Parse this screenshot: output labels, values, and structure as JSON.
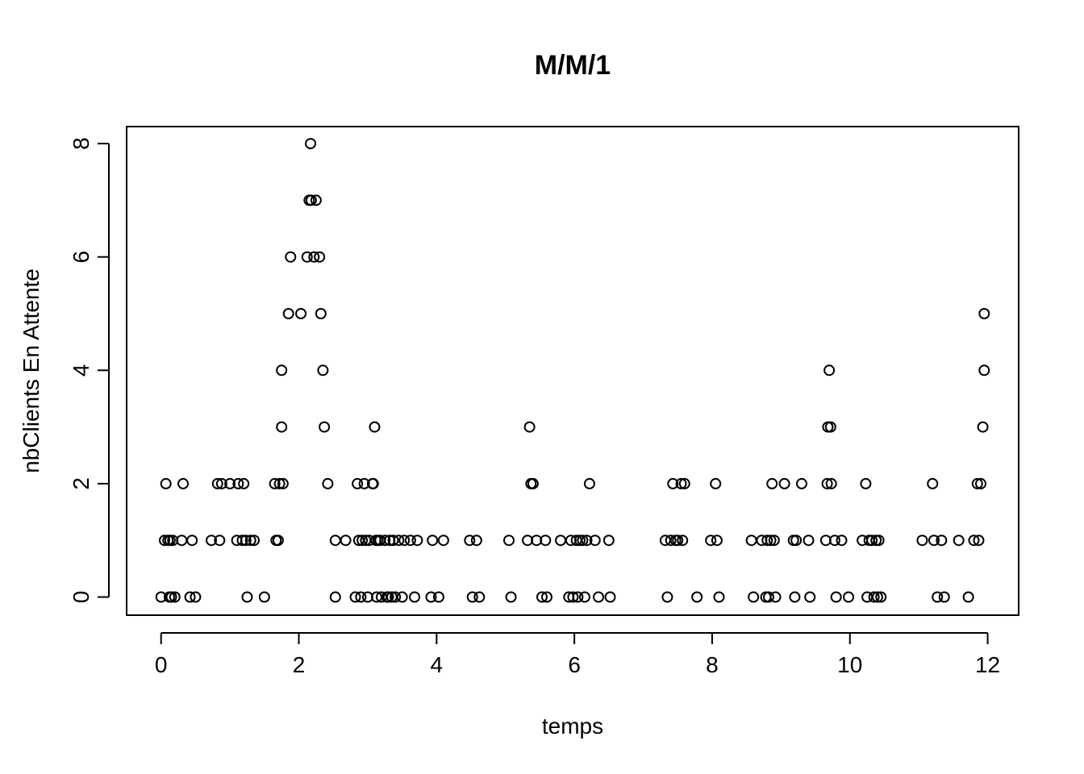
{
  "chart_data": {
    "type": "scatter",
    "title": "M/M/1",
    "xlabel": "temps",
    "ylabel": "nbClients En Attente",
    "xlim": [
      -0.5,
      12.45
    ],
    "ylim": [
      -0.32,
      8.3
    ],
    "xticks": [
      0,
      2,
      4,
      6,
      8,
      10,
      12
    ],
    "yticks": [
      0,
      2,
      4,
      6,
      8
    ],
    "xtick_labels": [
      "0",
      "2",
      "4",
      "6",
      "8",
      "10",
      "12"
    ],
    "ytick_labels": [
      "0",
      "2",
      "4",
      "6",
      "8"
    ],
    "grid": false,
    "marker": "open-circle",
    "series": [
      {
        "x": [
          0.0,
          0.05,
          0.07,
          0.1,
          0.12,
          0.13,
          0.15,
          0.17,
          0.2,
          0.3,
          0.32,
          0.42,
          0.45,
          0.5,
          0.73,
          0.82,
          0.85,
          0.88,
          1.0,
          1.1,
          1.12,
          1.18,
          1.2,
          1.23,
          1.25,
          1.3,
          1.35,
          1.5,
          1.65,
          1.67,
          1.7,
          1.72,
          1.75,
          1.75,
          1.77,
          1.85,
          1.88,
          2.03,
          2.12,
          2.15,
          2.17,
          2.18,
          2.22,
          2.25,
          2.3,
          2.32,
          2.35,
          2.37,
          2.42,
          2.53,
          2.53,
          2.68,
          2.82,
          2.85,
          2.87,
          2.9,
          2.92,
          2.95,
          2.97,
          3.0,
          3.02,
          3.07,
          3.08,
          3.1,
          3.12,
          3.13,
          3.15,
          3.18,
          3.2,
          3.25,
          3.28,
          3.3,
          3.32,
          3.35,
          3.37,
          3.4,
          3.45,
          3.5,
          3.53,
          3.62,
          3.68,
          3.72,
          3.92,
          3.94,
          4.03,
          4.1,
          4.48,
          4.52,
          4.58,
          4.62,
          5.05,
          5.08,
          5.32,
          5.35,
          5.37,
          5.4,
          5.45,
          5.53,
          5.58,
          5.6,
          5.8,
          5.92,
          5.95,
          5.98,
          6.03,
          6.05,
          6.08,
          6.12,
          6.15,
          6.18,
          6.22,
          6.3,
          6.35,
          6.5,
          6.52,
          7.32,
          7.35,
          7.4,
          7.43,
          7.47,
          7.5,
          7.55,
          7.57,
          7.6,
          7.78,
          7.98,
          8.05,
          8.07,
          8.1,
          8.57,
          8.6,
          8.72,
          8.78,
          8.8,
          8.82,
          8.85,
          8.87,
          8.9,
          8.92,
          9.05,
          9.18,
          9.2,
          9.22,
          9.3,
          9.4,
          9.42,
          9.65,
          9.67,
          9.68,
          9.7,
          9.72,
          9.73,
          9.78,
          9.8,
          9.88,
          9.98,
          10.18,
          10.23,
          10.25,
          10.28,
          10.32,
          10.35,
          10.38,
          10.4,
          10.42,
          10.45,
          11.05,
          11.2,
          11.22,
          11.27,
          11.33,
          11.37,
          11.58,
          11.72,
          11.8,
          11.85,
          11.87,
          11.9,
          11.93,
          11.95,
          11.95
        ],
        "y": [
          0,
          1,
          2,
          1,
          0,
          1,
          0,
          1,
          0,
          1,
          2,
          0,
          1,
          0,
          1,
          2,
          1,
          2,
          2,
          1,
          2,
          1,
          2,
          1,
          0,
          1,
          1,
          0,
          2,
          1,
          1,
          2,
          4,
          3,
          2,
          5,
          6,
          5,
          6,
          7,
          8,
          7,
          6,
          7,
          6,
          5,
          4,
          3,
          2,
          1,
          0,
          1,
          0,
          2,
          1,
          0,
          1,
          2,
          1,
          0,
          1,
          2,
          2,
          3,
          1,
          0,
          1,
          1,
          0,
          1,
          0,
          0,
          1,
          0,
          1,
          0,
          1,
          0,
          1,
          1,
          0,
          1,
          0,
          1,
          0,
          1,
          1,
          0,
          1,
          0,
          1,
          0,
          1,
          3,
          2,
          2,
          1,
          0,
          1,
          0,
          1,
          0,
          1,
          0,
          1,
          0,
          1,
          1,
          0,
          1,
          2,
          1,
          0,
          1,
          0,
          1,
          0,
          1,
          2,
          1,
          1,
          2,
          1,
          2,
          0,
          1,
          2,
          1,
          0,
          1,
          0,
          1,
          0,
          1,
          0,
          1,
          2,
          1,
          0,
          2,
          1,
          0,
          1,
          2,
          1,
          0,
          1,
          2,
          3,
          4,
          3,
          2,
          1,
          0,
          1,
          0,
          1,
          2,
          0,
          1,
          1,
          0,
          1,
          0,
          1,
          0,
          1,
          2,
          1,
          0,
          1,
          0,
          1,
          0,
          1,
          2,
          1,
          2,
          3,
          4,
          5
        ]
      }
    ]
  }
}
